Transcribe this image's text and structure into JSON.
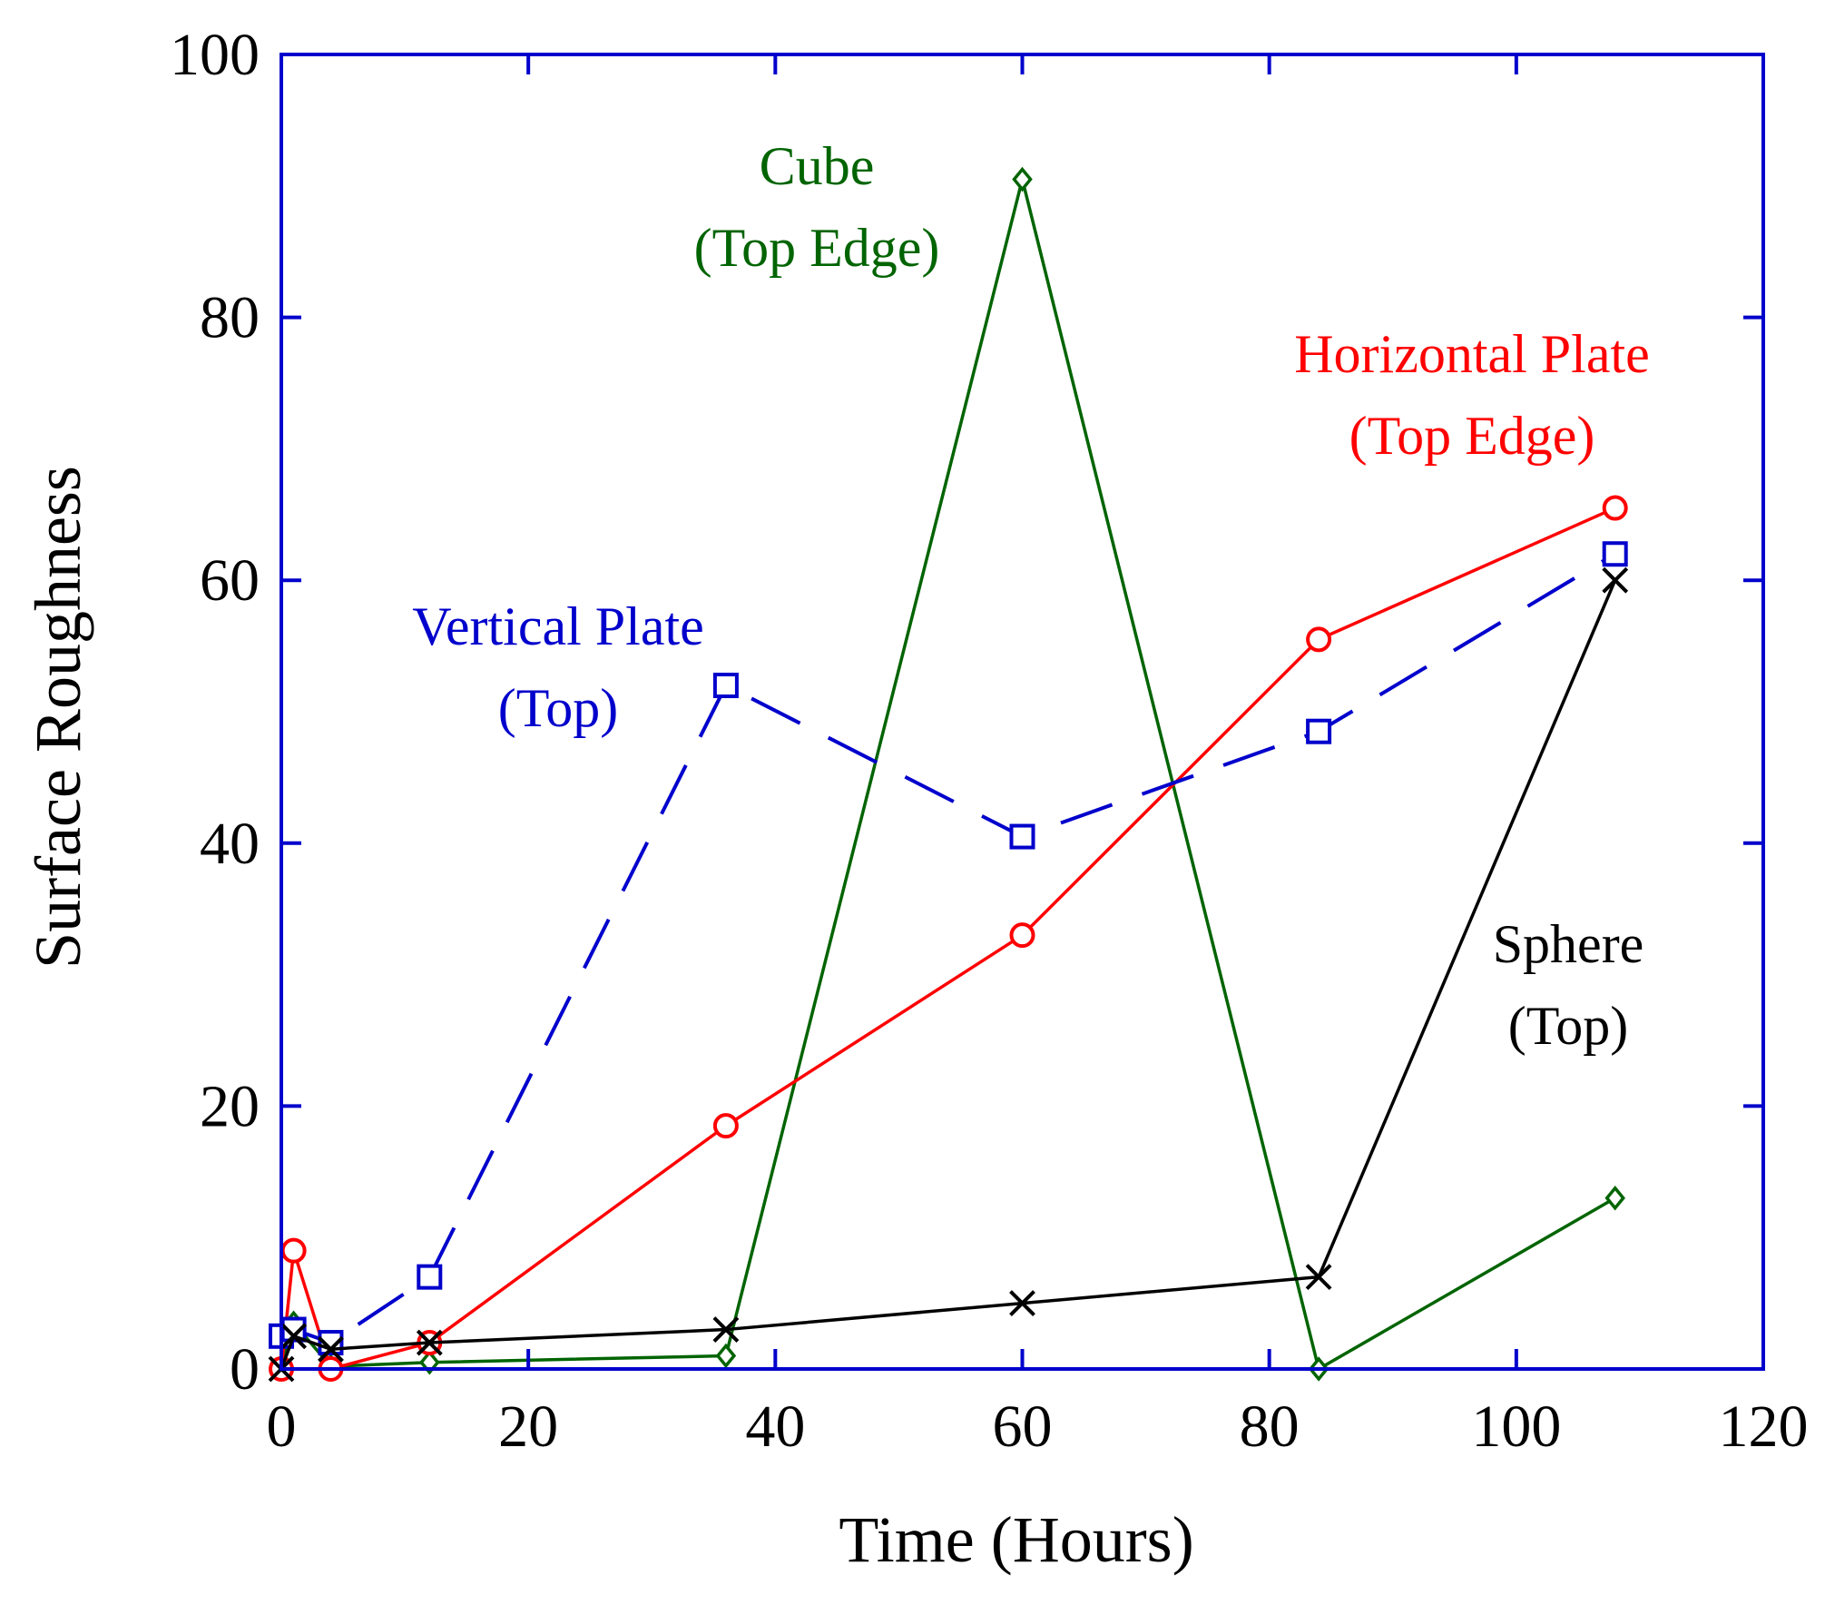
{
  "chart_data": {
    "type": "line",
    "title": "",
    "xlabel": "Time (Hours)",
    "ylabel": "Surface Roughness",
    "xlim": [
      0,
      120
    ],
    "ylim": [
      0,
      100
    ],
    "xticks": [
      0,
      20,
      40,
      60,
      80,
      100,
      120
    ],
    "yticks": [
      0,
      20,
      40,
      60,
      80,
      100
    ],
    "frame_color": "#0000cc",
    "series": [
      {
        "name": "Vertical Plate (Top)",
        "label_lines": [
          "Vertical Plate",
          "(Top)"
        ],
        "color": "#0000cc",
        "marker": "square",
        "dashed": true,
        "x": [
          0,
          1,
          4,
          12,
          36,
          60,
          84,
          108
        ],
        "y": [
          2.5,
          3,
          2,
          7,
          52,
          40.5,
          48.5,
          62
        ]
      },
      {
        "name": "Horizontal Plate (Top Edge)",
        "label_lines": [
          "Horizontal Plate",
          "(Top Edge)"
        ],
        "color": "#ff0000",
        "marker": "circle",
        "dashed": false,
        "x": [
          0,
          1,
          4,
          12,
          36,
          60,
          84,
          108
        ],
        "y": [
          0,
          9,
          0,
          2,
          18.5,
          33,
          55.5,
          65.5
        ]
      },
      {
        "name": "Cube (Top Edge)",
        "label_lines": [
          "Cube",
          "(Top Edge)"
        ],
        "color": "#006400",
        "marker": "diamond",
        "dashed": false,
        "x": [
          0,
          1,
          4,
          12,
          36,
          60,
          84,
          108
        ],
        "y": [
          0,
          3.5,
          0.2,
          0.5,
          1,
          90.5,
          0,
          13
        ]
      },
      {
        "name": "Sphere (Top)",
        "label_lines": [
          "Sphere",
          "(Top)"
        ],
        "color": "#000000",
        "marker": "x",
        "dashed": false,
        "x": [
          0,
          1,
          4,
          12,
          36,
          60,
          84,
          108
        ],
        "y": [
          0,
          2.5,
          1.5,
          2,
          3,
          5,
          7,
          60
        ]
      }
    ]
  }
}
